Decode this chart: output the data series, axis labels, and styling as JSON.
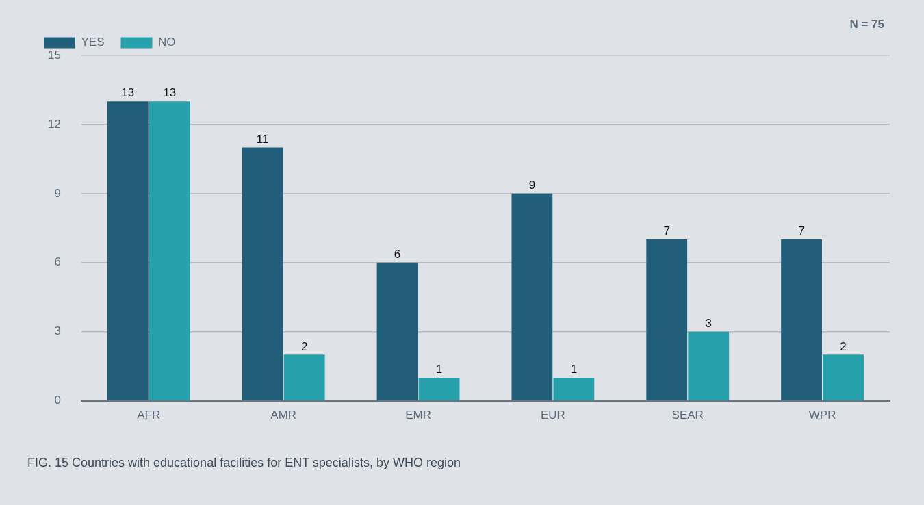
{
  "chart_data": {
    "type": "bar",
    "categories": [
      "AFR",
      "AMR",
      "EMR",
      "EUR",
      "SEAR",
      "WPR"
    ],
    "series": [
      {
        "name": "YES",
        "color": "#215e7a",
        "values": [
          13,
          11,
          6,
          9,
          7,
          7
        ]
      },
      {
        "name": "NO",
        "color": "#26a0ab",
        "values": [
          13,
          2,
          1,
          1,
          3,
          2
        ]
      }
    ],
    "ylim": [
      0,
      15
    ],
    "yticks": [
      0,
      3,
      6,
      9,
      12,
      15
    ],
    "grid": "y",
    "legend": "top left",
    "data_labels": true,
    "annotations": [
      "N = 75",
      "FIG. 15 Countries with educational facilities for ENT specialists, by WHO region"
    ]
  }
}
